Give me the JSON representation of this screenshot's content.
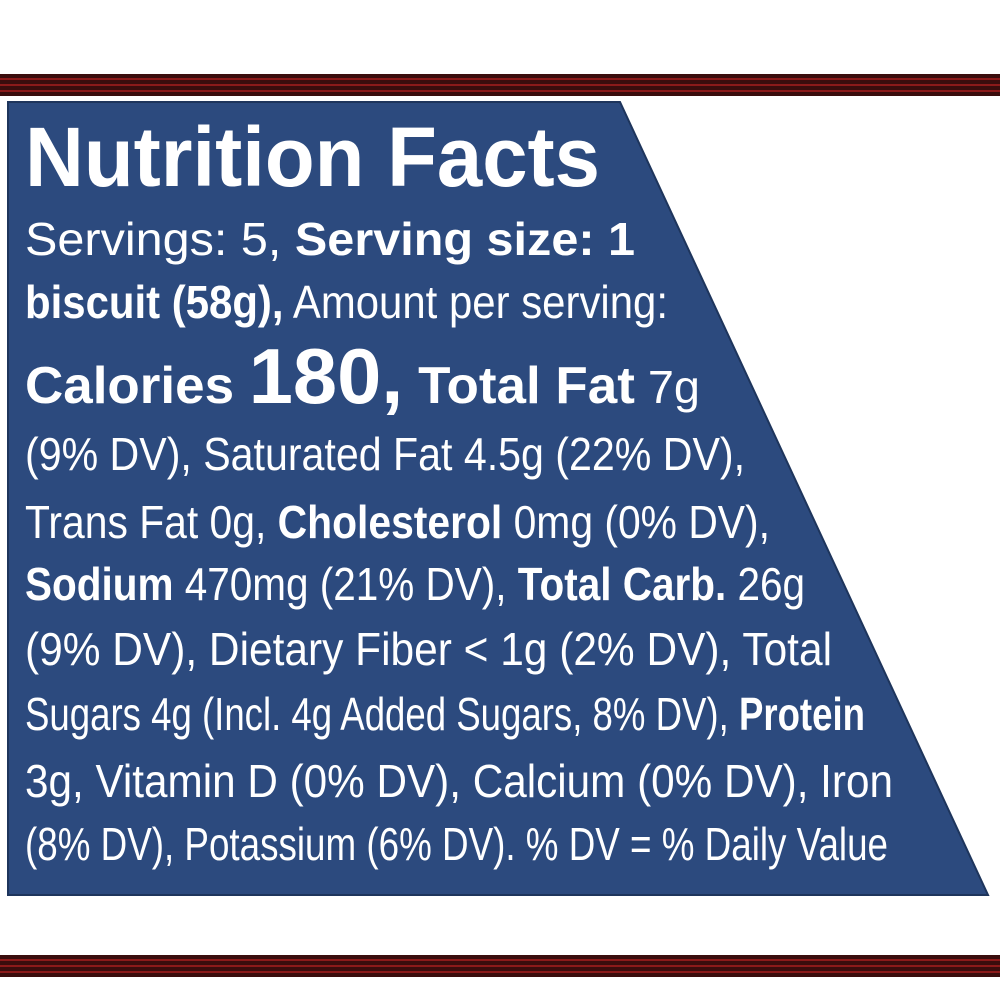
{
  "title": "Nutrition Facts",
  "lines": [
    [
      {
        "text": "Servings: 5, ",
        "bold": false
      },
      {
        "text": "Serving size: 1",
        "bold": true
      }
    ],
    [
      {
        "text": "biscuit (58g),",
        "bold": true
      },
      {
        "text": " Amount per serving:",
        "bold": false
      }
    ],
    [
      {
        "text": "Calories ",
        "bold": true
      },
      {
        "text": "180,",
        "bold": true,
        "large": true
      },
      {
        "text": " Total Fat",
        "bold": true
      },
      {
        "text": " 7g",
        "bold": false
      }
    ],
    [
      {
        "text": "(9% DV), Saturated Fat 4.5g (22% DV),",
        "bold": false
      }
    ],
    [
      {
        "text": "Trans Fat 0g, ",
        "bold": false
      },
      {
        "text": "Cholesterol",
        "bold": true
      },
      {
        "text": " 0mg (0% DV),",
        "bold": false
      }
    ],
    [
      {
        "text": "Sodium",
        "bold": true
      },
      {
        "text": " 470mg (21% DV), ",
        "bold": false
      },
      {
        "text": "Total Carb.",
        "bold": true
      },
      {
        "text": " 26g",
        "bold": false
      }
    ],
    [
      {
        "text": "(9% DV), Dietary Fiber < 1g (2% DV), Total",
        "bold": false
      }
    ],
    [
      {
        "text": "Sugars 4g (Incl. 4g Added Sugars, 8% DV), ",
        "bold": false
      },
      {
        "text": "Protein",
        "bold": true
      }
    ],
    [
      {
        "text": "3g, Vitamin D (0% DV), Calcium (0% DV), Iron",
        "bold": false
      }
    ],
    [
      {
        "text": "(8% DV), Potassium (6% DV). % DV = % Daily Value",
        "bold": false
      }
    ]
  ]
}
